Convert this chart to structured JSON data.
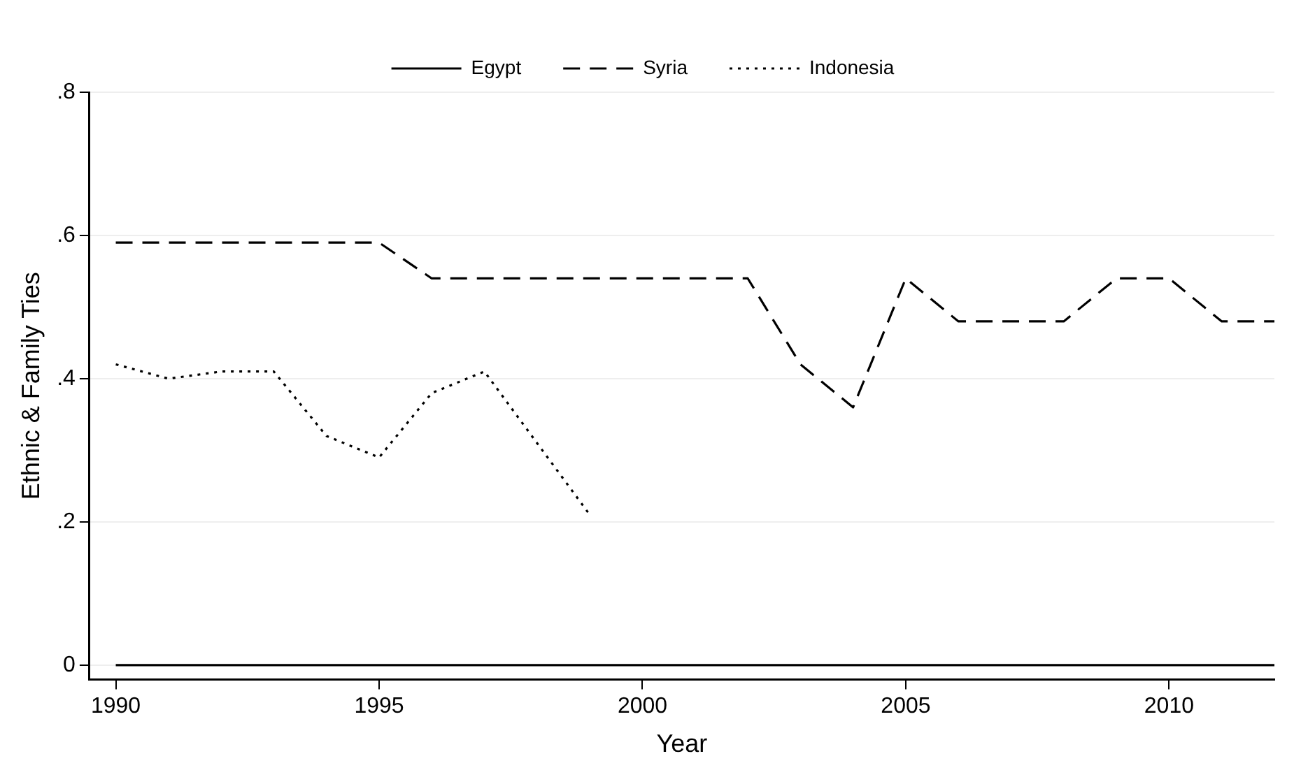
{
  "chart_data": {
    "type": "line",
    "xlabel": "Year",
    "ylabel": "Ethnic & Family Ties",
    "x": [
      1990,
      1991,
      1992,
      1993,
      1994,
      1995,
      1996,
      1997,
      1998,
      1999,
      2000,
      2001,
      2002,
      2003,
      2004,
      2005,
      2006,
      2007,
      2008,
      2009,
      2010,
      2011,
      2012
    ],
    "series": [
      {
        "name": "Egypt",
        "color": "#000000",
        "line_style": "solid",
        "values": [
          0,
          0,
          0,
          0,
          0,
          0,
          0,
          0,
          0,
          0,
          0,
          0,
          0,
          0,
          0,
          0,
          0,
          0,
          0,
          0,
          0,
          0,
          0
        ]
      },
      {
        "name": "Syria",
        "color": "#000000",
        "line_style": "dashed",
        "values": [
          0.59,
          0.59,
          0.59,
          0.59,
          0.59,
          0.59,
          0.54,
          0.54,
          0.54,
          0.54,
          0.54,
          0.54,
          0.54,
          0.42,
          0.36,
          0.54,
          0.48,
          0.48,
          0.48,
          0.54,
          0.54,
          0.48,
          0.48
        ]
      },
      {
        "name": "Indonesia",
        "color": "#000000",
        "line_style": "dotted",
        "values": [
          0.42,
          0.4,
          0.41,
          0.41,
          0.32,
          0.29,
          0.38,
          0.41,
          0.31,
          0.21,
          null,
          null,
          null,
          null,
          null,
          null,
          null,
          null,
          null,
          null,
          null,
          null,
          null
        ]
      }
    ],
    "xlim": [
      1989.5,
      2012
    ],
    "xticks": [
      1990,
      1995,
      2000,
      2005,
      2010
    ],
    "ylim": [
      -0.02,
      0.8
    ],
    "yticks": [
      {
        "value": 0,
        "label": "0"
      },
      {
        "value": 0.2,
        "label": ".2"
      },
      {
        "value": 0.4,
        "label": ".4"
      },
      {
        "value": 0.6,
        "label": ".6"
      },
      {
        "value": 0.8,
        "label": ".8"
      }
    ],
    "grid": "y",
    "legend": "top",
    "marker": "none"
  }
}
